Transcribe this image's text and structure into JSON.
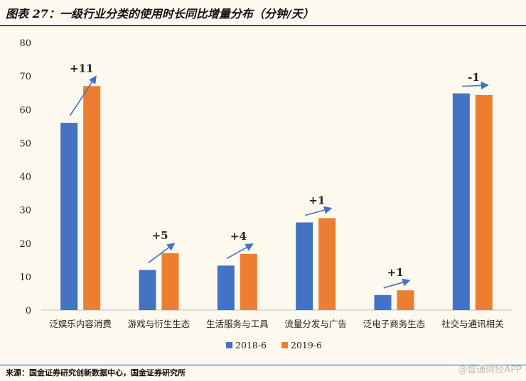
{
  "title": "图表 27：一级行业分类的使用时长同比增量分布（分钟/天）",
  "source": "来源：国金证券研究创新数据中心，国金证券研究所",
  "watermark": "@智通财经APP",
  "chart_data": {
    "type": "bar",
    "categories": [
      "泛娱乐内容消费",
      "游戏与衍生生态",
      "生活服务与工具",
      "流量分发与广告",
      "泛电子商务生态",
      "社交与通讯相关"
    ],
    "series": [
      {
        "name": "2018-6",
        "color": "#4472c4",
        "values": [
          56,
          12,
          13.3,
          26.2,
          4.5,
          64.8
        ]
      },
      {
        "name": "2019-6",
        "color": "#ed7d31",
        "values": [
          67,
          17,
          16.8,
          27.5,
          5.9,
          64.3
        ]
      }
    ],
    "annotations": [
      "+11",
      "+5",
      "+4",
      "+1",
      "+1",
      "-1"
    ],
    "ylim": [
      0,
      80
    ],
    "yticks": [
      0,
      10,
      20,
      30,
      40,
      50,
      60,
      70,
      80
    ],
    "grid": false,
    "legend": "bottom",
    "arrow_color": "#4472c4"
  }
}
